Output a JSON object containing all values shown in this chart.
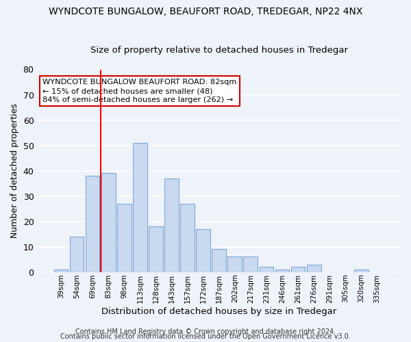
{
  "title": "WYNDCOTE BUNGALOW, BEAUFORT ROAD, TREDEGAR, NP22 4NX",
  "subtitle": "Size of property relative to detached houses in Tredegar",
  "xlabel": "Distribution of detached houses by size in Tredegar",
  "ylabel": "Number of detached properties",
  "categories": [
    "39sqm",
    "54sqm",
    "69sqm",
    "83sqm",
    "98sqm",
    "113sqm",
    "128sqm",
    "143sqm",
    "157sqm",
    "172sqm",
    "187sqm",
    "202sqm",
    "217sqm",
    "231sqm",
    "246sqm",
    "261sqm",
    "276sqm",
    "291sqm",
    "305sqm",
    "320sqm",
    "335sqm"
  ],
  "values": [
    1,
    14,
    38,
    39,
    27,
    51,
    18,
    37,
    27,
    17,
    9,
    6,
    6,
    2,
    1,
    2,
    3,
    0,
    0,
    1,
    0
  ],
  "bar_color": "#c9d9f0",
  "bar_edge_color": "#7fa8d4",
  "red_line_index": 3,
  "ylim": [
    0,
    80
  ],
  "yticks": [
    0,
    10,
    20,
    30,
    40,
    50,
    60,
    70,
    80
  ],
  "annotation_line1": "WYNDCOTE BUNGALOW BEAUFORT ROAD: 82sqm",
  "annotation_line2": "← 15% of detached houses are smaller (48)",
  "annotation_line3": "84% of semi-detached houses are larger (262) →",
  "annotation_box_color": "#ffffff",
  "annotation_box_edge_color": "#cc0000",
  "footnote1": "Contains HM Land Registry data © Crown copyright and database right 2024.",
  "footnote2": "Contains public sector information licensed under the Open Government Licence v3.0.",
  "background_color": "#eef2f9",
  "grid_color": "#ffffff",
  "title_fontsize": 10,
  "subtitle_fontsize": 9.5
}
